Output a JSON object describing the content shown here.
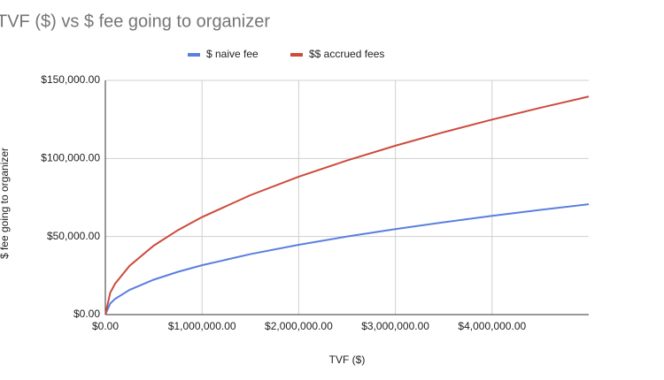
{
  "chart_data": {
    "type": "line",
    "title": "TVF ($) vs $ fee going to organizer",
    "x_label": "TVF ($)",
    "y_label": "$ fee going to organizer",
    "x": [
      0,
      50000,
      100000,
      250000,
      500000,
      750000,
      1000000,
      1500000,
      2000000,
      2500000,
      3000000,
      3500000,
      4000000,
      4500000,
      5000000
    ],
    "series": [
      {
        "name": "$ naive fee",
        "color": "#5b7fe0",
        "values": [
          0,
          7071,
          10000,
          15811,
          22361,
          27386,
          31623,
          38730,
          44721,
          50000,
          54772,
          59161,
          63246,
          67082,
          70711
        ]
      },
      {
        "name": "$$ accrued fees",
        "color": "#cc4b3c",
        "values": [
          0,
          13965,
          19750,
          31227,
          44163,
          54087,
          62455,
          76492,
          88324,
          98750,
          108175,
          116843,
          124911,
          132487,
          139654
        ]
      }
    ],
    "xlim": [
      0,
      5000000
    ],
    "xticks": [
      {
        "value": 0,
        "label": "$0.00"
      },
      {
        "value": 1000000,
        "label": "$1,000,000.00"
      },
      {
        "value": 2000000,
        "label": "$2,000,000.00"
      },
      {
        "value": 3000000,
        "label": "$3,000,000.00"
      },
      {
        "value": 4000000,
        "label": "$4,000,000.00"
      }
    ],
    "ylim": [
      0,
      150000
    ],
    "yticks": [
      {
        "value": 0,
        "label": "$0.00"
      },
      {
        "value": 50000,
        "label": "$50,000.00"
      },
      {
        "value": 100000,
        "label": "$100,000.00"
      },
      {
        "value": 150000,
        "label": "$150,000.00"
      }
    ],
    "grid": true,
    "legend": "top"
  }
}
